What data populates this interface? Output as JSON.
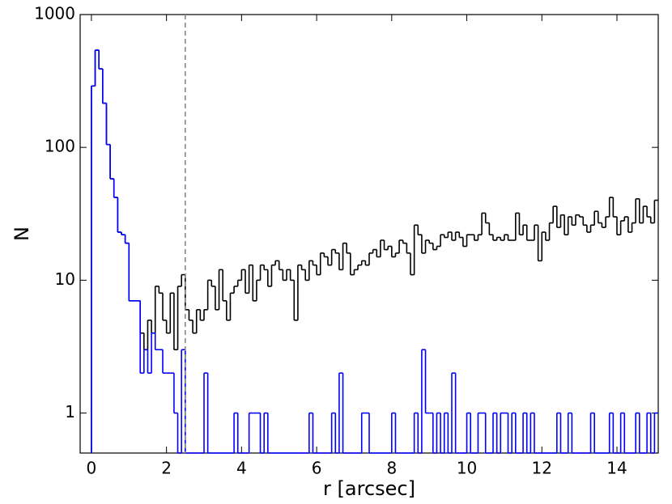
{
  "chart_data": {
    "type": "step-histogram",
    "xlabel": "r [arcsec]",
    "ylabel": "N",
    "xlim": [
      -0.3,
      15.1
    ],
    "ylim": [
      0.5,
      1000
    ],
    "yscale": "log",
    "xticks": [
      0,
      2,
      4,
      6,
      8,
      10,
      12,
      14
    ],
    "yticks": [
      1,
      10,
      100,
      1000
    ],
    "reference_line_x": 2.5,
    "reference_line_color": "#808080",
    "bins": [
      0,
      0.1,
      0.2,
      0.3,
      0.4,
      0.5,
      0.6,
      0.7,
      0.8,
      0.9,
      1,
      1.1,
      1.2,
      1.3,
      1.4,
      1.5,
      1.6,
      1.7,
      1.8,
      1.9,
      2,
      2.1,
      2.2,
      2.3,
      2.4,
      2.5,
      2.6,
      2.7,
      2.8,
      2.9,
      3,
      3.1,
      3.2,
      3.3,
      3.4,
      3.5,
      3.6,
      3.7,
      3.8,
      3.9,
      4,
      4.1,
      4.2,
      4.3,
      4.4,
      4.5,
      4.6,
      4.7,
      4.8,
      4.9,
      5,
      5.1,
      5.2,
      5.3,
      5.4,
      5.5,
      5.6,
      5.7,
      5.8,
      5.9,
      6,
      6.1,
      6.2,
      6.3,
      6.4,
      6.5,
      6.6,
      6.7,
      6.8,
      6.9,
      7,
      7.1,
      7.2,
      7.3,
      7.4,
      7.5,
      7.6,
      7.7,
      7.8,
      7.9,
      8,
      8.1,
      8.2,
      8.3,
      8.4,
      8.5,
      8.6,
      8.7,
      8.8,
      8.9,
      9,
      9.1,
      9.2,
      9.3,
      9.4,
      9.5,
      9.6,
      9.7,
      9.8,
      9.9,
      10,
      10.1,
      10.2,
      10.3,
      10.4,
      10.5,
      10.6,
      10.7,
      10.8,
      10.9,
      11,
      11.1,
      11.2,
      11.3,
      11.4,
      11.5,
      11.6,
      11.7,
      11.8,
      11.9,
      12,
      12.1,
      12.2,
      12.3,
      12.4,
      12.5,
      12.6,
      12.7,
      12.8,
      12.9,
      13,
      13.1,
      13.2,
      13.3,
      13.4,
      13.5,
      13.6,
      13.7,
      13.8,
      13.9,
      14,
      14.1,
      14.2,
      14.3,
      14.4,
      14.5,
      14.6,
      14.7,
      14.8,
      14.9,
      15,
      15.1
    ],
    "series": [
      {
        "color": "#000000",
        "values": [
          290,
          540,
          390,
          215,
          105,
          58,
          42,
          23,
          22,
          19,
          7,
          7,
          7,
          4,
          3,
          5,
          4,
          9,
          8,
          5,
          4,
          8,
          3,
          9,
          11,
          6,
          5,
          4,
          6,
          5,
          6,
          10,
          9,
          6,
          12,
          7,
          5,
          8,
          9,
          10,
          12,
          8,
          13,
          7,
          10,
          13,
          12,
          9,
          13,
          14,
          12,
          10,
          12,
          10,
          5,
          13,
          12,
          10,
          14,
          13,
          11,
          16,
          15,
          13,
          17,
          16,
          12,
          19,
          16,
          11,
          12,
          13,
          14,
          13,
          16,
          17,
          15,
          20,
          17,
          18,
          15,
          16,
          20,
          19,
          16,
          11,
          26,
          22,
          16,
          20,
          19,
          17,
          18,
          22,
          21,
          23,
          20,
          23,
          21,
          18,
          22,
          22,
          20,
          22,
          32,
          27,
          22,
          20,
          21,
          20,
          22,
          20,
          20,
          32,
          22,
          26,
          20,
          20,
          26,
          14,
          23,
          20,
          27,
          36,
          25,
          31,
          22,
          30,
          26,
          31,
          30,
          26,
          23,
          26,
          33,
          27,
          25,
          30,
          42,
          30,
          22,
          28,
          30,
          23,
          27,
          41,
          27,
          36,
          30,
          27,
          40
        ]
      },
      {
        "color": "#0000ff",
        "values": [
          290,
          540,
          390,
          215,
          105,
          58,
          42,
          23,
          22,
          19,
          7,
          7,
          7,
          2,
          3,
          2,
          4,
          3,
          3,
          2,
          2,
          2,
          1,
          0,
          3,
          0,
          0,
          0,
          0,
          0,
          2,
          0,
          0,
          0,
          0,
          0,
          0,
          0,
          1,
          0,
          0,
          0,
          1,
          1,
          1,
          0,
          1,
          0,
          0,
          0,
          0,
          0,
          0,
          0,
          0,
          0,
          0,
          0,
          1,
          0,
          0,
          0,
          0,
          0,
          1,
          0,
          2,
          0,
          0,
          0,
          0,
          0,
          1,
          1,
          0,
          0,
          0,
          0,
          0,
          0,
          1,
          0,
          0,
          0,
          0,
          0,
          1,
          0,
          3,
          1,
          1,
          0,
          1,
          0,
          1,
          0,
          2,
          0,
          0,
          0,
          1,
          0,
          0,
          1,
          1,
          0,
          0,
          1,
          0,
          1,
          1,
          0,
          1,
          0,
          0,
          1,
          0,
          1,
          0,
          0,
          0,
          0,
          0,
          0,
          1,
          0,
          0,
          1,
          0,
          0,
          0,
          0,
          0,
          1,
          0,
          0,
          0,
          0,
          1,
          0,
          0,
          1,
          0,
          0,
          0,
          1,
          0,
          0,
          1,
          0,
          1
        ]
      }
    ]
  }
}
